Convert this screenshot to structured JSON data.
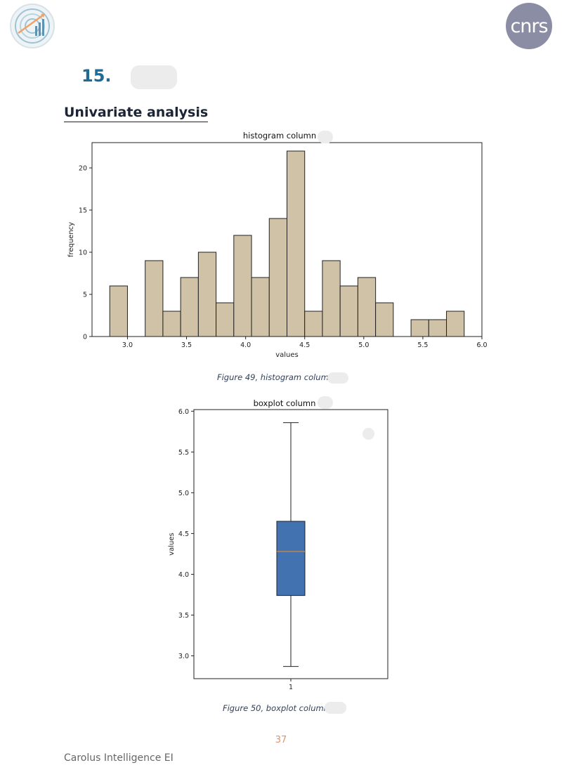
{
  "header": {
    "left_logo_icon": "data-analytics-logo-icon",
    "right_logo_text": "cnrs"
  },
  "section": {
    "number": "15.",
    "subheading": "Univariate analysis"
  },
  "chart_data": [
    {
      "type": "bar",
      "title": "histogram column",
      "xlabel": "values",
      "ylabel": "frequency",
      "xlim": [
        2.7,
        6.0
      ],
      "ylim": [
        0,
        23
      ],
      "xticks": [
        3.0,
        3.5,
        4.0,
        4.5,
        5.0,
        5.5,
        6.0
      ],
      "xtick_labels": [
        "3.0",
        "3.5",
        "4.0",
        "4.5",
        "5.0",
        "5.5",
        "6.0"
      ],
      "yticks": [
        0,
        5,
        10,
        15,
        20
      ],
      "ytick_labels": [
        "0",
        "5",
        "10",
        "15",
        "20"
      ],
      "bin_start": 2.85,
      "bin_width": 0.15,
      "counts": [
        6,
        0,
        9,
        3,
        7,
        10,
        4,
        12,
        7,
        14,
        22,
        3,
        9,
        6,
        7,
        4,
        0,
        2,
        2,
        3
      ],
      "bar_color": "#d0c2a6",
      "edge_color": "#222222",
      "grid": false
    },
    {
      "type": "box",
      "title": "boxplot column",
      "ylabel": "values",
      "xtick_labels": [
        "1"
      ],
      "ylim": [
        2.72,
        6.02
      ],
      "yticks": [
        3.0,
        3.5,
        4.0,
        4.5,
        5.0,
        5.5,
        6.0
      ],
      "ytick_labels": [
        "3.0",
        "3.5",
        "4.0",
        "4.5",
        "5.0",
        "5.5",
        "6.0"
      ],
      "whisker_low": 2.87,
      "q1": 3.74,
      "median": 4.28,
      "q3": 4.65,
      "whisker_high": 5.86,
      "box_color": "#4272b0",
      "median_color": "#e08a3c",
      "grid": false
    }
  ],
  "captions": {
    "fig49": "Figure 49, histogram columr",
    "fig50": "Figure 50, boxplot column"
  },
  "footer": {
    "page_number": "37",
    "company": "Carolus Intelligence EI"
  }
}
